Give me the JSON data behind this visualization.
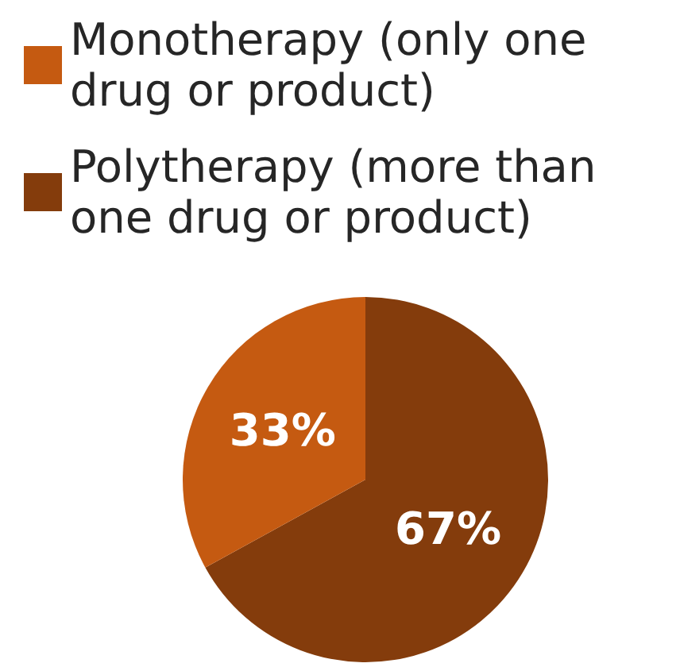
{
  "chart_data": {
    "type": "pie",
    "categories": [
      "Polytherapy (more than one drug or product)",
      "Monotherapy (only one drug or product)"
    ],
    "values": [
      67,
      33
    ],
    "colors": [
      "#843c0c",
      "#c55a11"
    ],
    "value_labels": [
      "67%",
      "33%"
    ],
    "legend": "top"
  }
}
